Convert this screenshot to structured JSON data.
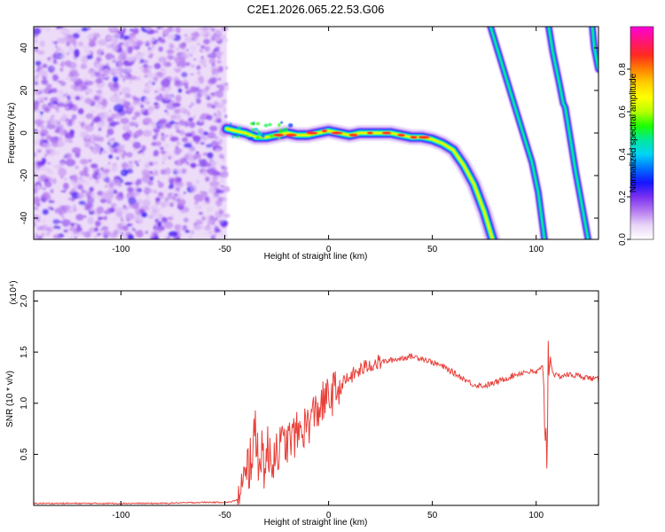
{
  "figure": {
    "title": "C2E1.2026.065.22.53.G06"
  },
  "chart_data": [
    {
      "type": "heatmap",
      "title": "C2E1.2026.065.22.53.G06",
      "xlabel": "Height of straight line (km)",
      "ylabel": "Frequency (Hz)",
      "xlim": [
        -142,
        130
      ],
      "ylim": [
        -50,
        50
      ],
      "xticks": [
        -100,
        -50,
        0,
        50,
        100
      ],
      "yticks": [
        -40,
        -20,
        0,
        20,
        40
      ],
      "noise_region_x": [
        -142,
        -49
      ],
      "ridge_center": {
        "x": [
          -49,
          -45,
          -40,
          -35,
          -30,
          -25,
          -20,
          -15,
          -10,
          -5,
          0,
          5,
          10,
          15,
          20,
          25,
          30,
          35,
          40,
          45,
          50,
          55,
          60,
          65,
          70,
          75,
          79
        ],
        "y": [
          2,
          1,
          0,
          -2,
          -2,
          -1,
          0,
          -1,
          -1,
          0,
          1,
          0,
          -1,
          0,
          0,
          0,
          0,
          -1,
          -2,
          -2,
          -3,
          -5,
          -8,
          -15,
          -24,
          -37,
          -50
        ]
      },
      "descending_ridges": [
        {
          "x": [
            78,
            83,
            88,
            93,
            98,
            101,
            104
          ],
          "y": [
            50,
            34,
            18,
            2,
            -14,
            -28,
            -50
          ]
        },
        {
          "x": [
            106,
            108,
            111,
            113,
            114,
            116,
            119,
            122,
            125
          ],
          "y": [
            50,
            38,
            24,
            14,
            12,
            0,
            -18,
            -34,
            -50
          ]
        },
        {
          "x": [
            127,
            128,
            130
          ],
          "y": [
            50,
            40,
            30
          ]
        }
      ],
      "colorbar": {
        "label": "Normalized spectral amplitude",
        "range": [
          0.0,
          1.0
        ],
        "ticks": [
          0.0,
          0.2,
          0.4,
          0.6,
          0.8
        ],
        "colors": [
          "#ffffff",
          "#e9d5f7",
          "#b47af0",
          "#7a30f0",
          "#1515ff",
          "#0070ff",
          "#00d4f5",
          "#00e8a0",
          "#1cff00",
          "#b8ff00",
          "#ffff00",
          "#ffd000",
          "#ff8000",
          "#ff2a20",
          "#ff1478",
          "#ff00d8"
        ]
      }
    },
    {
      "type": "line",
      "xlabel": "Height of straight line (km)",
      "ylabel": "SNR (10 * v/v)",
      "scale_label": "(x10⁴)",
      "xlim": [
        -142,
        130
      ],
      "ylim": [
        0,
        2.1
      ],
      "xticks": [
        -100,
        -50,
        0,
        50,
        100
      ],
      "yticks": [
        0.5,
        1.0,
        1.5,
        2.0
      ],
      "ytick_labels": [
        "0.5",
        "1.0",
        "1.5",
        "2.0"
      ],
      "color": "#e8403a",
      "series": [
        {
          "name": "SNR",
          "x": [
            -142,
            -120,
            -100,
            -80,
            -60,
            -48,
            -43,
            -40,
            -38,
            -36,
            -34,
            -32,
            -30,
            -25,
            -20,
            -15,
            -10,
            -5,
            0,
            5,
            10,
            15,
            20,
            25,
            30,
            35,
            40,
            45,
            50,
            55,
            60,
            65,
            70,
            75,
            80,
            85,
            90,
            95,
            100,
            103,
            104,
            105,
            106,
            108,
            110,
            115,
            120,
            125,
            130
          ],
          "y": [
            0.02,
            0.02,
            0.02,
            0.02,
            0.03,
            0.03,
            0.06,
            0.2,
            0.45,
            0.65,
            0.55,
            0.5,
            0.45,
            0.55,
            0.62,
            0.7,
            0.8,
            0.95,
            1.05,
            1.15,
            1.25,
            1.32,
            1.38,
            1.4,
            1.42,
            1.44,
            1.46,
            1.44,
            1.4,
            1.36,
            1.3,
            1.24,
            1.18,
            1.17,
            1.2,
            1.24,
            1.28,
            1.31,
            1.3,
            1.35,
            1.1,
            0.5,
            1.55,
            1.3,
            1.26,
            1.28,
            1.27,
            1.25,
            1.23
          ]
        }
      ]
    }
  ]
}
